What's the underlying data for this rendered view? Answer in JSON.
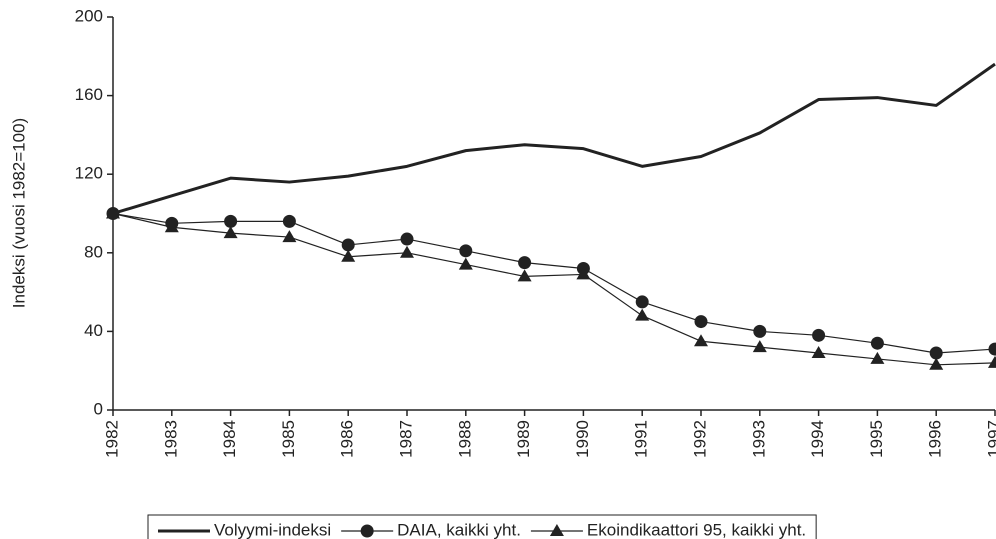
{
  "chart_data": {
    "type": "line",
    "y_label": "Indeksi (vuosi 1982=100)",
    "categories": [
      "1982",
      "1983",
      "1984",
      "1985",
      "1986",
      "1987",
      "1988",
      "1989",
      "1990",
      "1991",
      "1992",
      "1993",
      "1994",
      "1995",
      "1996",
      "1997"
    ],
    "series": [
      {
        "name": "Volyymi-indeksi",
        "color": "#222222",
        "width": 3,
        "values": [
          100,
          109,
          118,
          116,
          119,
          124,
          132,
          135,
          133,
          124,
          129,
          141,
          158,
          159,
          155,
          176
        ]
      },
      {
        "name": "DAIA, kaikki yht.",
        "color": "#222222",
        "width": 1.2,
        "marker": "circle",
        "values": [
          100,
          95,
          96,
          96,
          84,
          87,
          81,
          75,
          72,
          55,
          45,
          40,
          38,
          34,
          29,
          31
        ]
      },
      {
        "name": "Ekoindikaattori 95, kaikki yht.",
        "color": "#222222",
        "width": 1.2,
        "marker": "triangle",
        "values": [
          100,
          93,
          90,
          88,
          78,
          80,
          74,
          68,
          69,
          48,
          35,
          32,
          29,
          26,
          23,
          24
        ]
      }
    ],
    "ylim": [
      0,
      200
    ],
    "yticks": [
      0,
      40,
      80,
      120,
      160,
      200
    ],
    "grid": false,
    "legend": "bottom"
  }
}
